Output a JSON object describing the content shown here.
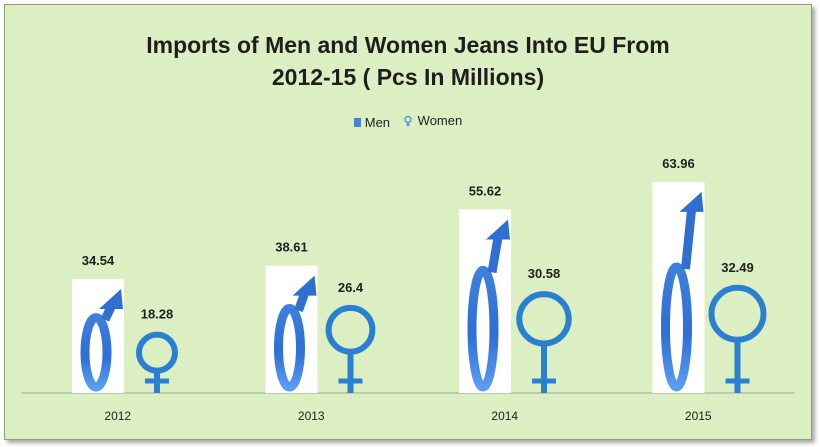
{
  "chart_data": {
    "type": "bar",
    "title_lines": [
      "Imports of Men and Women Jeans Into EU From",
      "2012-15 ( Pcs In Millions)"
    ],
    "categories": [
      "2012",
      "2013",
      "2014",
      "2015"
    ],
    "series": [
      {
        "name": "Men",
        "values": [
          34.54,
          38.61,
          55.62,
          63.96
        ],
        "color": "#2f6fd0",
        "icon": "male-symbol-icon"
      },
      {
        "name": "Women",
        "values": [
          18.28,
          26.4,
          30.58,
          32.49
        ],
        "color": "#2a7fd0",
        "icon": "female-symbol-icon"
      }
    ],
    "value_labels": {
      "Men": [
        "34.54",
        "38.61",
        "55.62",
        "63.96"
      ],
      "Women": [
        "18.28",
        "26.4",
        "30.58",
        "32.49"
      ]
    },
    "xlabel": "",
    "ylabel": "",
    "ylim": [
      0,
      80
    ],
    "grid": false,
    "legend_position": "top-center",
    "background_color": "#dcefc3"
  }
}
